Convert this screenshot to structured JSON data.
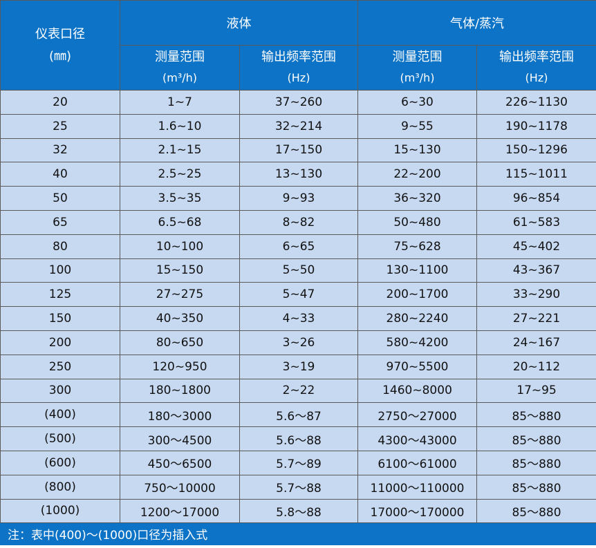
{
  "header": {
    "diameter_label": "仪表口径",
    "diameter_unit": "(㎜)",
    "liquid": "液体",
    "gas": "气体/蒸汽",
    "measure_range": "测量范围",
    "measure_unit": "(m³/h)",
    "freq_range": "输出频率范围",
    "freq_unit": "(Hz)"
  },
  "rows": [
    [
      "20",
      "1~7",
      "37~260",
      "6~30",
      "226~1130"
    ],
    [
      "25",
      "1.6~10",
      "32~214",
      "9~55",
      "190~1178"
    ],
    [
      "32",
      "2.1~15",
      "17~150",
      "15~130",
      "150~1296"
    ],
    [
      "40",
      "2.5~25",
      "13~130",
      "22~200",
      "115~1011"
    ],
    [
      "50",
      "3.5~35",
      "9~93",
      "36~320",
      "96~854"
    ],
    [
      "65",
      "6.5~68",
      "8~82",
      "50~480",
      "61~583"
    ],
    [
      "80",
      "10~100",
      "6~65",
      "75~628",
      "45~402"
    ],
    [
      "100",
      "15~150",
      "5~50",
      "130~1100",
      "43~367"
    ],
    [
      "125",
      "27~275",
      "5~47",
      "200~1700",
      "33~290"
    ],
    [
      "150",
      "40~350",
      "4~33",
      "280~2240",
      "27~221"
    ],
    [
      "200",
      "80~650",
      "3~26",
      "580~4200",
      "24~167"
    ],
    [
      "250",
      "120~950",
      "3~19",
      "970~5500",
      "20~112"
    ],
    [
      "300",
      "180~1800",
      "2~22",
      "1460~8000",
      "17~95"
    ],
    [
      "(400)",
      "180～3000",
      "5.6～87",
      "2750～27000",
      "85～880"
    ],
    [
      "(500)",
      "300～4500",
      "5.6～88",
      "4300～43000",
      "85～880"
    ],
    [
      "(600)",
      "450～6500",
      "5.7～89",
      "6100～61000",
      "85～880"
    ],
    [
      "(800)",
      "750～10000",
      "5.7～88",
      "11000～110000",
      "85～880"
    ],
    [
      "(1000)",
      "1200～17000",
      "5.8～88",
      "17000～170000",
      "85～880"
    ]
  ],
  "note": "注：表中(400)～(1000)口径为插入式"
}
